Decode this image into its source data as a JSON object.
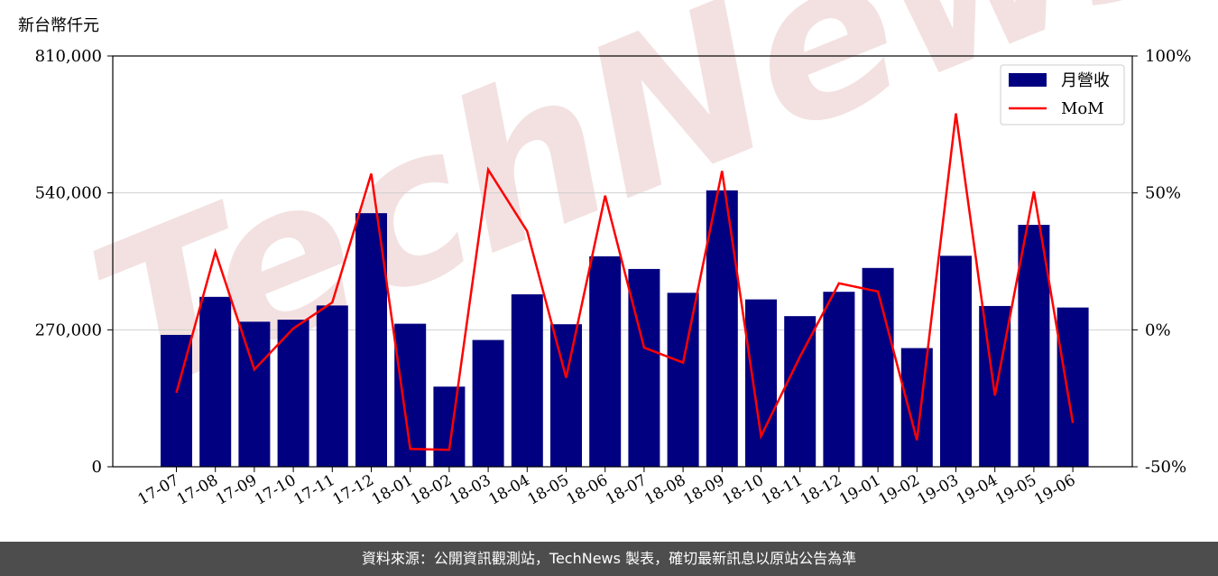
{
  "y_unit_label": "新台幣仟元",
  "footer_note": "資料來源：公開資訊觀測站，TechNews 製表，確切最新訊息以原站公告為準",
  "watermark": "TechNews",
  "colors": {
    "bar": "#000080",
    "line": "#ff0000",
    "footer_bg": "#4d4d4d",
    "watermark": "#f2dede"
  },
  "chart_data": {
    "type": "bar",
    "categories": [
      "17-07",
      "17-08",
      "17-09",
      "17-10",
      "17-11",
      "17-12",
      "18-01",
      "18-02",
      "18-03",
      "18-04",
      "18-05",
      "18-06",
      "18-07",
      "18-08",
      "18-09",
      "18-10",
      "18-11",
      "18-12",
      "19-01",
      "19-02",
      "19-03",
      "19-04",
      "19-05",
      "19-06"
    ],
    "series": [
      {
        "name": "月營收",
        "type": "bar",
        "axis": "left",
        "values": [
          260000,
          335000,
          286000,
          290000,
          318000,
          500000,
          282000,
          158000,
          250000,
          340000,
          281000,
          415000,
          390000,
          343000,
          545000,
          330000,
          297000,
          345000,
          392000,
          234000,
          416000,
          317000,
          477000,
          314000
        ]
      },
      {
        "name": "MoM",
        "type": "line",
        "axis": "right",
        "values": [
          -23,
          28.5,
          -14.5,
          0.5,
          10,
          57,
          -43.5,
          -43.8,
          58.5,
          36,
          -17.5,
          49,
          -6.5,
          -12,
          58,
          -38.8,
          -9.8,
          17,
          14,
          -40.3,
          79,
          -24,
          50.5,
          -34
        ]
      }
    ],
    "y_left": {
      "ticks": [
        "0",
        "270,000",
        "540,000",
        "810,000"
      ],
      "ylim": [
        0,
        810000
      ]
    },
    "y_right": {
      "ticks": [
        "-50%",
        "0%",
        "50%",
        "100%"
      ],
      "ylim": [
        -50,
        100
      ]
    },
    "grid": "horizontal",
    "legend": {
      "placement": "top-right",
      "entries": [
        "月營收",
        "MoM"
      ]
    }
  }
}
